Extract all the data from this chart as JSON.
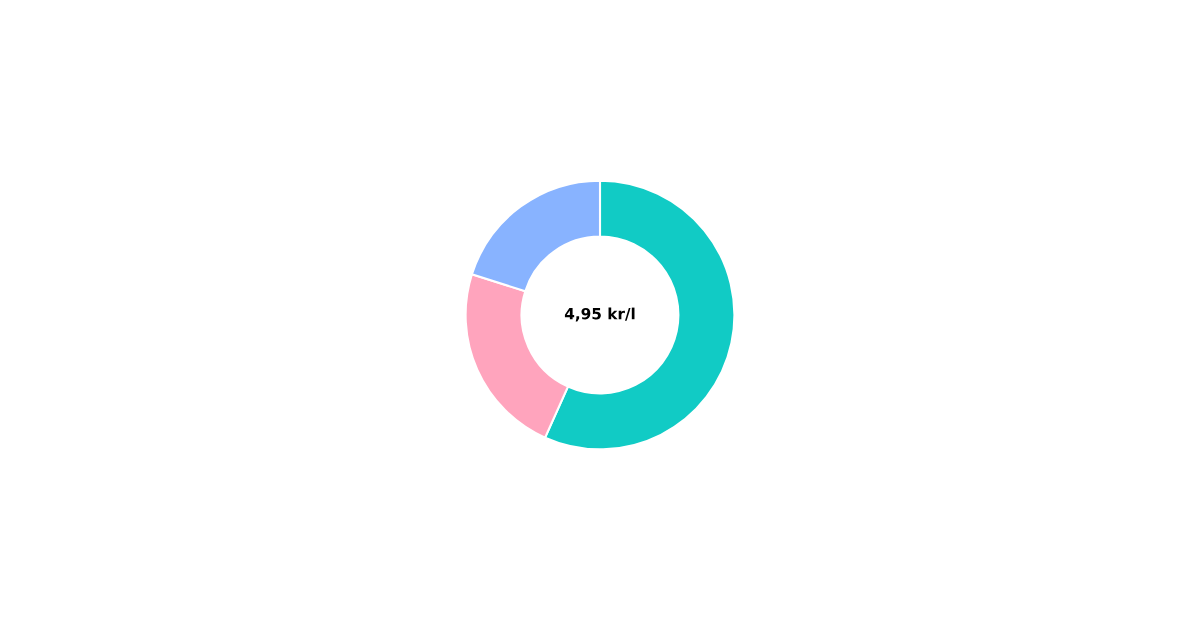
{
  "chart_data": {
    "type": "donut",
    "categories": [
      null,
      null,
      null
    ],
    "values": [
      56.7,
      23.2,
      20.1
    ],
    "colors": [
      "#11cbc5",
      "#ffa4bd",
      "#88b3ff"
    ],
    "annotations": [
      "4,95 kr/l"
    ]
  }
}
